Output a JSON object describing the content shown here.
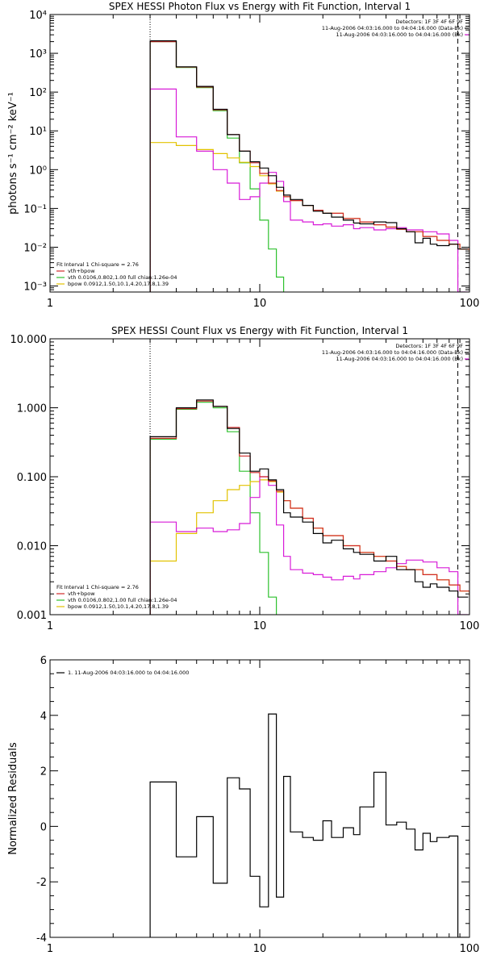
{
  "colors": {
    "data": "#000000",
    "total": "#d6157a",
    "thermal": "#d22b2b",
    "vth": "#2ec12e",
    "bpow": "#e2c200",
    "background": "#d81bd8",
    "frame": "#000000"
  },
  "chart_data": [
    {
      "type": "line",
      "title": "SPEX HESSI Photon Flux vs Energy with Fit Function, Interval 1",
      "xlabel": "",
      "ylabel": "photons s⁻¹ cm⁻² keV⁻¹",
      "xscale": "log",
      "yscale": "log",
      "xlim": [
        1,
        100
      ],
      "ylim": [
        0.0007,
        10000
      ],
      "xticks": [
        1,
        10,
        100
      ],
      "xtick_labels": [
        "1",
        "10",
        "100"
      ],
      "yticks": [
        0.001,
        0.01,
        0.1,
        1,
        10,
        100,
        1000,
        10000
      ],
      "ytick_labels": [
        "10⁻³",
        "10⁻²",
        "10⁻¹",
        "10⁰",
        "10¹",
        "10²",
        "10³",
        "10⁴"
      ],
      "vlines": [
        {
          "x": 3,
          "style": "dotted"
        },
        {
          "x": 88,
          "style": "dashed"
        }
      ],
      "info": [
        "Detectors: 1F 3F 4F 6F 9F",
        "11-Aug-2006 04:03:16.000 to 04:04:16.000 (Data-Bk)",
        "11-Aug-2006 04:03:16.000 to 04:04:16.000 (Bk)"
      ],
      "legend": [
        "Fit Interval  1    Chi-square = 2.76",
        "vth+bpow",
        "vth 0.0106,0.802,1.00  full chian:1.26e-04",
        "bpow 0.0912,1.50,10.1,4.20,17.8,1.39"
      ],
      "series": [
        {
          "key": "vth",
          "color": "#2ec12e",
          "x": [
            3,
            4,
            5,
            6,
            7,
            8,
            9,
            10,
            11,
            12,
            13
          ],
          "values": [
            2000,
            430,
            130,
            33,
            6.5,
            1.5,
            0.32,
            0.05,
            0.009,
            0.0017,
            0.0001
          ]
        },
        {
          "key": "bpow",
          "color": "#e2c200",
          "x": [
            3,
            4,
            5,
            6,
            7,
            8,
            9,
            10,
            11,
            12,
            13,
            14,
            16,
            18,
            20,
            25,
            30,
            35,
            40,
            45,
            50,
            60,
            70,
            80,
            90,
            100
          ],
          "values": [
            5.0,
            4.2,
            3.3,
            2.6,
            2.0,
            1.55,
            1.2,
            0.7,
            0.43,
            0.28,
            0.2,
            0.16,
            0.12,
            0.09,
            0.075,
            0.055,
            0.045,
            0.038,
            0.033,
            0.029,
            0.025,
            0.019,
            0.015,
            0.012,
            0.009,
            0.0075
          ]
        },
        {
          "key": "background",
          "color": "#d81bd8",
          "x": [
            3,
            4,
            5,
            6,
            7,
            8,
            9,
            10,
            11,
            12,
            13,
            14,
            16,
            18,
            20,
            22,
            25,
            28,
            30,
            35,
            40,
            45,
            50,
            60,
            70,
            80,
            88
          ],
          "values": [
            120,
            7,
            3,
            1.0,
            0.45,
            0.17,
            0.2,
            0.45,
            0.85,
            0.5,
            0.15,
            0.05,
            0.045,
            0.038,
            0.04,
            0.035,
            0.038,
            0.03,
            0.032,
            0.028,
            0.03,
            0.032,
            0.028,
            0.025,
            0.022,
            0.015,
            0.0007
          ]
        },
        {
          "key": "total",
          "color": "#d22b2b",
          "x": [
            3,
            4,
            5,
            6,
            7,
            8,
            9,
            10,
            11,
            12,
            13,
            14,
            16,
            18,
            20,
            25,
            30,
            35,
            40,
            45,
            50,
            60,
            70,
            80,
            90,
            100
          ],
          "values": [
            2000,
            440,
            135,
            35,
            8.0,
            3.0,
            1.5,
            0.8,
            0.45,
            0.29,
            0.2,
            0.16,
            0.12,
            0.09,
            0.075,
            0.055,
            0.045,
            0.038,
            0.033,
            0.029,
            0.025,
            0.019,
            0.015,
            0.012,
            0.009,
            0.0075
          ]
        },
        {
          "key": "data",
          "color": "#000000",
          "x": [
            3,
            4,
            5,
            6,
            7,
            8,
            9,
            10,
            11,
            12,
            13,
            14,
            16,
            18,
            20,
            22,
            25,
            28,
            30,
            35,
            40,
            45,
            50,
            55,
            60,
            65,
            70,
            80,
            88
          ],
          "values": [
            2100,
            450,
            140,
            36,
            8.0,
            3.0,
            1.6,
            1.1,
            0.7,
            0.35,
            0.22,
            0.17,
            0.12,
            0.085,
            0.075,
            0.06,
            0.05,
            0.042,
            0.04,
            0.045,
            0.043,
            0.03,
            0.025,
            0.013,
            0.017,
            0.012,
            0.011,
            0.012,
            0.009
          ]
        }
      ]
    },
    {
      "type": "line",
      "title": "SPEX HESSI Count Flux vs Energy with Fit Function, Interval 1",
      "xlabel": "",
      "ylabel": "",
      "xscale": "log",
      "yscale": "log",
      "xlim": [
        1,
        100
      ],
      "ylim": [
        0.001,
        10
      ],
      "xticks": [
        1,
        10,
        100
      ],
      "xtick_labels": [
        "1",
        "10",
        "100"
      ],
      "yticks": [
        0.001,
        0.01,
        0.1,
        1,
        10
      ],
      "ytick_labels": [
        "0.001",
        "0.010",
        "0.100",
        "1.000",
        "10.000"
      ],
      "vlines": [
        {
          "x": 3,
          "style": "dotted"
        },
        {
          "x": 88,
          "style": "dashed"
        }
      ],
      "info": [
        "Detectors: 1F 3F 4F 6F 9F",
        "11-Aug-2006 04:03:16.000 to 04:04:16.000 (Data-Bk)",
        "11-Aug-2006 04:03:16.000 to 04:04:16.000 (Bk)"
      ],
      "legend": [
        "Fit Interval  1    Chi-square = 2.76",
        "vth+bpow",
        "vth 0.0106,0.802,1.00  full chian:1.26e-04",
        "bpow 0.0912,1.50,10.1,4.20,17.8,1.39"
      ],
      "series": [
        {
          "key": "vth",
          "color": "#2ec12e",
          "x": [
            3,
            4,
            5,
            6,
            7,
            8,
            9,
            10,
            11,
            12
          ],
          "values": [
            0.35,
            0.95,
            1.2,
            1.0,
            0.45,
            0.12,
            0.03,
            0.008,
            0.0018,
            0.0001
          ]
        },
        {
          "key": "bpow",
          "color": "#e2c200",
          "x": [
            3,
            4,
            5,
            6,
            7,
            8,
            9,
            10,
            11,
            12,
            13,
            14,
            16,
            18,
            20,
            25,
            30,
            35,
            40,
            45,
            50,
            60,
            70,
            80,
            90,
            100
          ],
          "values": [
            0.006,
            0.015,
            0.03,
            0.045,
            0.065,
            0.075,
            0.085,
            0.09,
            0.085,
            0.06,
            0.045,
            0.035,
            0.025,
            0.018,
            0.014,
            0.01,
            0.008,
            0.007,
            0.006,
            0.005,
            0.0045,
            0.0038,
            0.0032,
            0.0027,
            0.0022,
            0.0019
          ]
        },
        {
          "key": "background",
          "color": "#d81bd8",
          "x": [
            3,
            4,
            5,
            6,
            7,
            8,
            9,
            10,
            11,
            12,
            13,
            14,
            16,
            18,
            20,
            22,
            25,
            28,
            30,
            35,
            40,
            45,
            50,
            60,
            70,
            80,
            88
          ],
          "values": [
            0.022,
            0.016,
            0.018,
            0.016,
            0.017,
            0.021,
            0.05,
            0.1,
            0.075,
            0.02,
            0.007,
            0.0045,
            0.004,
            0.0038,
            0.0035,
            0.0032,
            0.0036,
            0.0033,
            0.0038,
            0.0042,
            0.0048,
            0.0055,
            0.0062,
            0.0058,
            0.0048,
            0.0042,
            0.001
          ]
        },
        {
          "key": "total",
          "color": "#d22b2b",
          "x": [
            3,
            4,
            5,
            6,
            7,
            8,
            9,
            10,
            11,
            12,
            13,
            14,
            16,
            18,
            20,
            25,
            30,
            35,
            40,
            45,
            50,
            60,
            70,
            80,
            90,
            100
          ],
          "values": [
            0.36,
            0.97,
            1.25,
            1.05,
            0.52,
            0.2,
            0.115,
            0.1,
            0.087,
            0.062,
            0.045,
            0.035,
            0.025,
            0.018,
            0.014,
            0.01,
            0.008,
            0.007,
            0.006,
            0.005,
            0.0045,
            0.0038,
            0.0032,
            0.0027,
            0.0022,
            0.0019
          ]
        },
        {
          "key": "data",
          "color": "#000000",
          "x": [
            3,
            4,
            5,
            6,
            7,
            8,
            9,
            10,
            11,
            12,
            13,
            14,
            16,
            18,
            20,
            22,
            25,
            28,
            30,
            35,
            40,
            45,
            50,
            55,
            60,
            65,
            70,
            80,
            88
          ],
          "values": [
            0.38,
            1.0,
            1.3,
            1.05,
            0.5,
            0.22,
            0.12,
            0.13,
            0.09,
            0.065,
            0.03,
            0.026,
            0.022,
            0.015,
            0.011,
            0.012,
            0.009,
            0.008,
            0.0075,
            0.006,
            0.007,
            0.0045,
            0.0045,
            0.003,
            0.0025,
            0.0028,
            0.0025,
            0.0022,
            0.0018
          ]
        }
      ]
    },
    {
      "type": "line",
      "title": "",
      "xlabel": "",
      "ylabel": "Normalized Residuals",
      "xscale": "log",
      "yscale": "linear",
      "xlim": [
        1,
        100
      ],
      "ylim": [
        -4,
        6
      ],
      "xticks": [
        1,
        10,
        100
      ],
      "xtick_labels": [
        "1",
        "10",
        "100"
      ],
      "yticks": [
        -4,
        -2,
        0,
        2,
        4,
        6
      ],
      "ytick_labels": [
        "-4",
        "-2",
        "0",
        "2",
        "4",
        "6"
      ],
      "legend": [
        "1. 11-Aug-2006 04:03:16.000 to 04:04:16.000"
      ],
      "series": [
        {
          "key": "residuals",
          "color": "#000000",
          "x": [
            3,
            4,
            5,
            6,
            7,
            8,
            9,
            10,
            11,
            12,
            13,
            14,
            16,
            18,
            20,
            22,
            25,
            28,
            30,
            35,
            40,
            45,
            50,
            55,
            60,
            65,
            70,
            80,
            88
          ],
          "values": [
            1.6,
            -1.1,
            0.35,
            -2.05,
            1.75,
            1.35,
            -1.8,
            -2.9,
            4.05,
            -2.55,
            1.8,
            -0.2,
            -0.4,
            -0.5,
            0.2,
            -0.4,
            -0.05,
            -0.3,
            0.7,
            1.95,
            0.05,
            0.15,
            -0.1,
            -0.85,
            -0.25,
            -0.55,
            -0.4,
            -0.35,
            -4.0
          ]
        }
      ]
    }
  ]
}
